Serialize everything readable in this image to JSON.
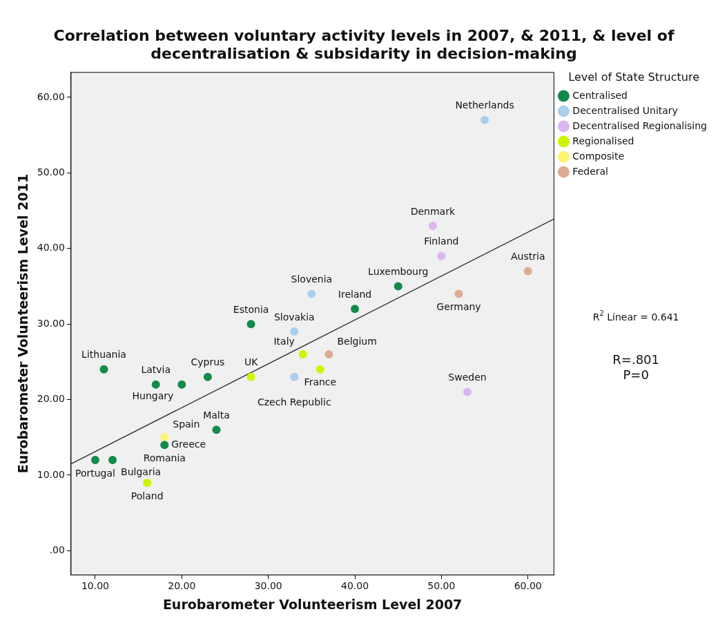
{
  "chart_data": {
    "type": "scatter",
    "title": "Correlation between voluntary activity levels in 2007, & 2011, & level of decentralisation & subsidarity in decision-making",
    "xlabel": "Eurobarometer Volunteerism Level 2007",
    "ylabel": "Eurobarometer Volunteerism Level 2011",
    "legend_title": "Level of State Structure",
    "legend": "right",
    "marker": "circle",
    "grid": false,
    "xlim": [
      7.2,
      63
    ],
    "ylim": [
      -3.2,
      63.3
    ],
    "xticks": [
      {
        "value": 10,
        "label": "10.00"
      },
      {
        "value": 20,
        "label": "20.00"
      },
      {
        "value": 30,
        "label": "30.00"
      },
      {
        "value": 40,
        "label": "40.00"
      },
      {
        "value": 50,
        "label": "50.00"
      },
      {
        "value": 60,
        "label": "60.00"
      }
    ],
    "yticks": [
      {
        "value": 0,
        "label": ".00"
      },
      {
        "value": 10,
        "label": "10.00"
      },
      {
        "value": 20,
        "label": "20.00"
      },
      {
        "value": 30,
        "label": "30.00"
      },
      {
        "value": 40,
        "label": "40.00"
      },
      {
        "value": 50,
        "label": "50.00"
      },
      {
        "value": 60,
        "label": "60.00"
      }
    ],
    "series": [
      {
        "name": "Centralised",
        "color": "#138a4a",
        "x": [
          45,
          40,
          28,
          23,
          20,
          17,
          11,
          24,
          18,
          10,
          12
        ],
        "values": [
          35,
          32,
          30,
          23,
          22,
          22,
          24,
          16,
          14,
          12,
          12
        ]
      },
      {
        "name": "Decentralised Unitary",
        "color": "#aacfee",
        "x": [
          55,
          35,
          33,
          33
        ],
        "values": [
          57,
          34,
          29,
          23
        ]
      },
      {
        "name": "Decentralised Regionalising",
        "color": "#dbb6f0",
        "x": [
          49,
          50,
          53
        ],
        "values": [
          43,
          39,
          21
        ]
      },
      {
        "name": "Regionalised",
        "color": "#ccf500",
        "x": [
          34,
          36,
          28,
          16
        ],
        "values": [
          26,
          24,
          23,
          9
        ]
      },
      {
        "name": "Composite",
        "color": "#fbf572",
        "x": [
          18
        ],
        "values": [
          15
        ]
      },
      {
        "name": "Federal",
        "color": "#dbac94",
        "x": [
          60,
          52,
          37
        ],
        "values": [
          37,
          34,
          26
        ]
      },
      {
        "type": "line",
        "color": "#333333",
        "line_style": "solid",
        "marker": "none",
        "x": [
          7.2,
          63
        ],
        "values": [
          11.5,
          43.9
        ]
      }
    ],
    "annotations": [
      {
        "text": "Netherlands",
        "x": 55,
        "y": 57
      },
      {
        "text": "Denmark",
        "x": 49,
        "y": 43
      },
      {
        "text": "Finland",
        "x": 50,
        "y": 39
      },
      {
        "text": "Austria",
        "x": 60,
        "y": 37
      },
      {
        "text": "Luxembourg",
        "x": 45,
        "y": 35
      },
      {
        "text": "Germany",
        "x": 52,
        "y": 34
      },
      {
        "text": "Slovenia",
        "x": 35,
        "y": 34
      },
      {
        "text": "Ireland",
        "x": 40,
        "y": 32
      },
      {
        "text": "Estonia",
        "x": 28,
        "y": 30
      },
      {
        "text": "Slovakia",
        "x": 33,
        "y": 29
      },
      {
        "text": "Italy",
        "x": 34,
        "y": 26
      },
      {
        "text": "Belgium",
        "x": 37,
        "y": 26
      },
      {
        "text": "Lithuania",
        "x": 11,
        "y": 24
      },
      {
        "text": "France",
        "x": 36,
        "y": 24
      },
      {
        "text": "Cyprus",
        "x": 23,
        "y": 23
      },
      {
        "text": "UK",
        "x": 28,
        "y": 23
      },
      {
        "text": "Czech Republic",
        "x": 33,
        "y": 23
      },
      {
        "text": "Latvia",
        "x": 17,
        "y": 22
      },
      {
        "text": "Hungary",
        "x": 20,
        "y": 22
      },
      {
        "text": "Sweden",
        "x": 53,
        "y": 21
      },
      {
        "text": "Malta",
        "x": 24,
        "y": 16
      },
      {
        "text": "Spain",
        "x": 18,
        "y": 15
      },
      {
        "text": "Romania",
        "x": 18,
        "y": 14
      },
      {
        "text": "Greece",
        "x": 18,
        "y": 14
      },
      {
        "text": "Portugal",
        "x": 10,
        "y": 12
      },
      {
        "text": "Bulgaria",
        "x": 12,
        "y": 12
      },
      {
        "text": "Poland",
        "x": 16,
        "y": 9
      },
      "R$^{2}$ Linear = 0.641",
      "R=.801",
      "P=0"
    ]
  }
}
